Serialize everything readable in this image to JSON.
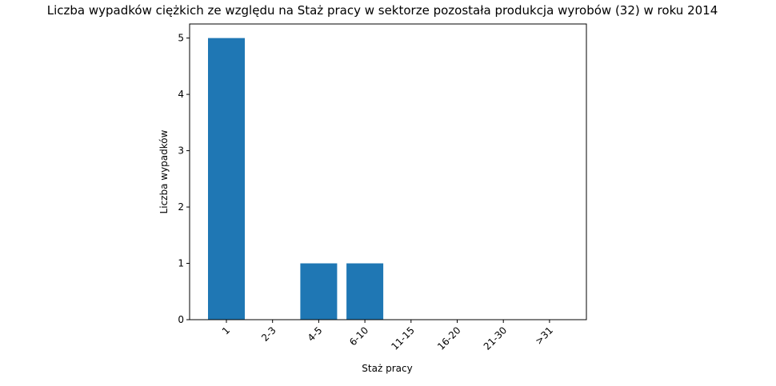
{
  "chart_data": {
    "type": "bar",
    "title": "Liczba wypadków ciężkich ze względu na Staż pracy w sektorze pozostała produkcja wyrobów  (32)   w roku 2014",
    "xlabel": "Staż pracy",
    "ylabel": "Liczba wypadków",
    "categories": [
      "1",
      "2-3",
      "4-5",
      "6-10",
      "11-15",
      "16-20",
      "21-30",
      ">31"
    ],
    "values": [
      5,
      0,
      1,
      1,
      0,
      0,
      0,
      0
    ],
    "ylim": [
      0,
      5.25
    ],
    "yticks": [
      "0",
      "1",
      "2",
      "3",
      "4",
      "5"
    ],
    "grid": false,
    "bar_color": "#1f77b4"
  }
}
